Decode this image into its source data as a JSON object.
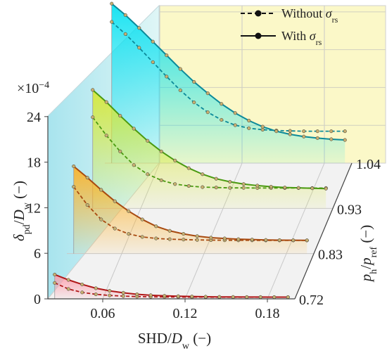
{
  "chart_data": {
    "type": "line",
    "title": "",
    "xlabel": "SHD/D_w (–)",
    "ylabel": "δ_pd/D_w (–)",
    "zlabel": "p_h/p_ref (–)",
    "yscale_label": "×10^−4",
    "xticks": [
      "0.06",
      "0.12",
      "0.18"
    ],
    "yticks": [
      "0",
      "6",
      "12",
      "18",
      "24"
    ],
    "zticks": [
      "0.72",
      "0.83",
      "0.93",
      "1.04"
    ],
    "xlim": [
      0.02,
      0.2
    ],
    "ylim": [
      0,
      24
    ],
    "legend": {
      "placement": "top-right",
      "entries": [
        {
          "label": "Without σ_rs",
          "style": "dashed"
        },
        {
          "label": "With σ_rs",
          "style": "solid"
        }
      ]
    },
    "x": [
      0.025,
      0.035,
      0.045,
      0.055,
      0.065,
      0.075,
      0.085,
      0.095,
      0.105,
      0.115,
      0.125,
      0.135,
      0.145,
      0.155,
      0.165,
      0.175,
      0.185,
      0.195
    ],
    "levels": [
      {
        "z": "0.72",
        "color": "#b01818",
        "fill": "#ff9aa8",
        "with_rs": [
          3.2,
          2.5,
          1.9,
          1.4,
          1.05,
          0.8,
          0.6,
          0.48,
          0.4,
          0.35,
          0.31,
          0.28,
          0.26,
          0.25,
          0.24,
          0.24,
          0.23,
          0.23
        ],
        "without_rs": [
          2.1,
          1.3,
          0.85,
          0.6,
          0.45,
          0.36,
          0.3,
          0.27,
          0.25,
          0.24,
          0.23,
          0.23,
          0.22,
          0.22,
          0.22,
          0.22,
          0.22,
          0.22
        ]
      },
      {
        "z": "0.83",
        "color": "#a84a10",
        "fill": "#ffb020",
        "with_rs": [
          11.5,
          10.0,
          8.4,
          6.9,
          5.6,
          4.5,
          3.6,
          3.0,
          2.6,
          2.3,
          2.1,
          2.0,
          1.9,
          1.85,
          1.8,
          1.78,
          1.76,
          1.75
        ],
        "without_rs": [
          8.8,
          6.4,
          4.5,
          3.3,
          2.6,
          2.2,
          2.0,
          1.9,
          1.85,
          1.8,
          1.78,
          1.76,
          1.75,
          1.75,
          1.74,
          1.74,
          1.74,
          1.74
        ]
      },
      {
        "z": "0.93",
        "color": "#4a9a10",
        "fill": "#d8e830",
        "with_rs": [
          15.6,
          14.0,
          12.2,
          10.5,
          8.9,
          7.5,
          6.3,
          5.3,
          4.5,
          3.9,
          3.5,
          3.2,
          3.0,
          2.85,
          2.75,
          2.7,
          2.65,
          2.6
        ],
        "without_rs": [
          12.0,
          9.6,
          7.5,
          5.7,
          4.5,
          3.7,
          3.2,
          2.95,
          2.8,
          2.75,
          2.7,
          2.7,
          2.68,
          2.68,
          2.68,
          2.68,
          2.68,
          2.68
        ]
      },
      {
        "z": "1.04",
        "color": "#0c8a9a",
        "fill": "#00e0f0",
        "with_rs": [
          21.0,
          19.5,
          17.8,
          16.0,
          14.2,
          12.4,
          10.7,
          9.2,
          7.8,
          6.6,
          5.6,
          4.8,
          4.2,
          3.8,
          3.5,
          3.3,
          3.15,
          3.05
        ],
        "without_rs": [
          18.6,
          17.0,
          15.2,
          13.3,
          11.4,
          9.6,
          8.0,
          6.7,
          5.7,
          5.0,
          4.6,
          4.4,
          4.3,
          4.25,
          4.2,
          4.2,
          4.2,
          4.2
        ]
      }
    ]
  }
}
